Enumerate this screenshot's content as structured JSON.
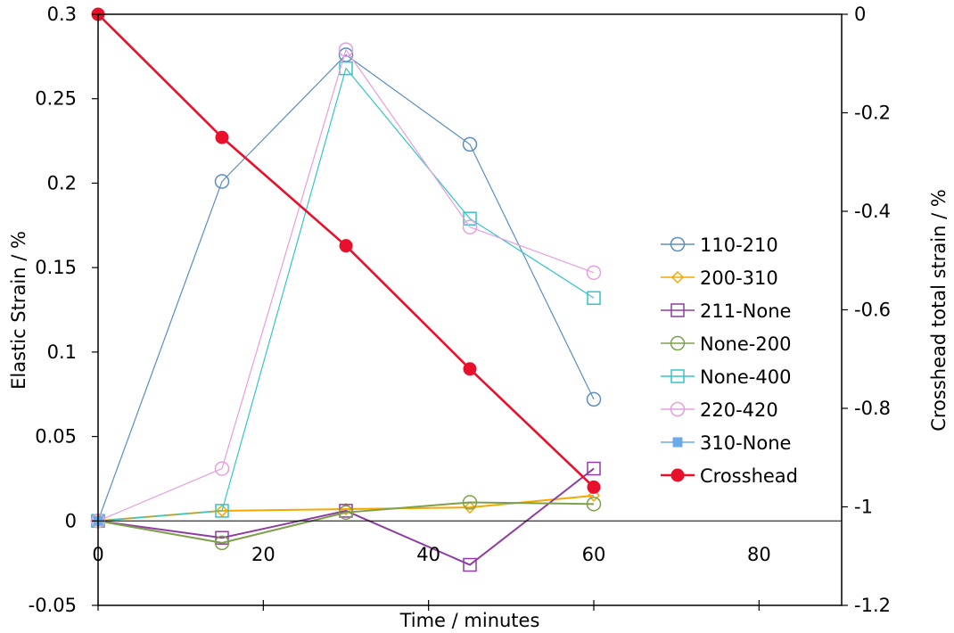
{
  "chart_data": {
    "type": "line",
    "xlabel": "Time / minutes",
    "ylabel": "Elastic Strain / %",
    "y2label": "Crosshead total strain / %",
    "xlim": [
      0,
      90
    ],
    "ylim": [
      -0.05,
      0.3
    ],
    "y2lim": [
      -1.2,
      0
    ],
    "x_ticks": [
      "0",
      "20",
      "40",
      "60",
      "80"
    ],
    "y_ticks": [
      "-0.05",
      "0",
      "0.05",
      "0.1",
      "0.15",
      "0.2",
      "0.25",
      "0.3"
    ],
    "y2_ticks": [
      "0",
      "-0.2",
      "-0.4",
      "-0.6",
      "-0.8",
      "-1",
      "-1.2"
    ],
    "grid": false,
    "legend_position": "right",
    "series": [
      {
        "name": "110-210",
        "axis": "left",
        "color": "#5b8dc0",
        "marker": "circle-open",
        "x": [
          0,
          15,
          30,
          45,
          60
        ],
        "values": [
          0,
          0.201,
          0.276,
          0.223,
          0.072
        ]
      },
      {
        "name": "200-310",
        "axis": "left",
        "color": "#f5a800",
        "marker": "diamond-open",
        "x": [
          0,
          15,
          30,
          45,
          60
        ],
        "values": [
          0,
          0.006,
          0.007,
          0.008,
          0.015
        ]
      },
      {
        "name": "211-None",
        "axis": "left",
        "color": "#8e3ea0",
        "marker": "square-open",
        "x": [
          0,
          15,
          30,
          45,
          60
        ],
        "values": [
          0,
          -0.01,
          0.006,
          -0.026,
          0.031
        ]
      },
      {
        "name": "None-200",
        "axis": "left",
        "color": "#7ea04c",
        "marker": "circle-open",
        "x": [
          0,
          15,
          30,
          45,
          60
        ],
        "values": [
          0,
          -0.013,
          0.005,
          0.011,
          0.01
        ]
      },
      {
        "name": "None-400",
        "axis": "left",
        "color": "#36c4c8",
        "marker": "square-open",
        "x": [
          0,
          15,
          30,
          45,
          60
        ],
        "values": [
          0,
          0.006,
          0.268,
          0.179,
          0.132
        ]
      },
      {
        "name": "220-420",
        "axis": "left",
        "color": "#e59fdc",
        "marker": "circle-open",
        "x": [
          0,
          15,
          30,
          45,
          60
        ],
        "values": [
          0,
          0.031,
          0.279,
          0.174,
          0.147
        ]
      },
      {
        "name": "310-None",
        "axis": "left",
        "color": "#6aaae8",
        "marker": "square-filled",
        "x": [
          0
        ],
        "values": [
          0
        ]
      },
      {
        "name": "Crosshead",
        "axis": "right",
        "color": "#e8102a",
        "marker": "circle-filled",
        "x": [
          0,
          15,
          30,
          45,
          60
        ],
        "values": [
          0,
          -0.25,
          -0.47,
          -0.72,
          -0.96
        ]
      }
    ]
  }
}
